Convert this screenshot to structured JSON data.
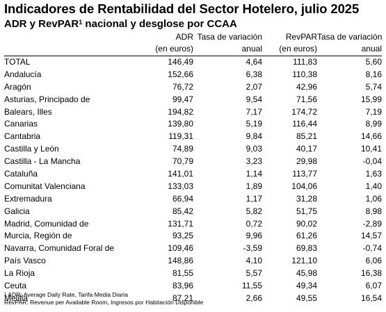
{
  "title": "Indicadores de Rentabilidad del Sector Hotelero, julio 2025",
  "subtitle": {
    "text": "ADR y RevPAR",
    "sup": "1",
    "rest": " nacional y desglose por CCAA"
  },
  "table": {
    "header_line1": [
      "",
      "ADR",
      "Tasa de variación",
      "RevPAR",
      "Tasa de variación"
    ],
    "header_line2": [
      "",
      "(en euros)",
      "anual",
      "(en euros)",
      "anual"
    ],
    "rows": [
      [
        "TOTAL",
        "146,49",
        "4,64",
        "111,83",
        "5,60"
      ],
      [
        "Andalucía",
        "152,66",
        "6,38",
        "110,38",
        "8,16"
      ],
      [
        "Aragón",
        "76,72",
        "2,07",
        "42,96",
        "5,74"
      ],
      [
        "Asturias, Principado de",
        "99,47",
        "9,54",
        "71,56",
        "15,99"
      ],
      [
        "Balears, Illes",
        "194,82",
        "7,17",
        "174,72",
        "7,19"
      ],
      [
        "Canarias",
        "139,80",
        "5,19",
        "116,44",
        "8,99"
      ],
      [
        "Cantabria",
        "119,31",
        "9,84",
        "85,21",
        "14,66"
      ],
      [
        "Castilla y León",
        "74,89",
        "9,03",
        "40,17",
        "10,41"
      ],
      [
        "Castilla - La Mancha",
        "70,79",
        "3,23",
        "29,98",
        "-0,04"
      ],
      [
        "Cataluña",
        "141,01",
        "1,14",
        "113,77",
        "1,63"
      ],
      [
        "Comunitat Valenciana",
        "133,03",
        "1,89",
        "104,06",
        "1,40"
      ],
      [
        "Extremadura",
        "66,94",
        "1,17",
        "31,28",
        "1,06"
      ],
      [
        "Galicia",
        "85,42",
        "5,82",
        "51,75",
        "8,98"
      ],
      [
        "Madrid, Comunidad de",
        "131,71",
        "0,72",
        "90,02",
        "-2,89"
      ],
      [
        "Murcia, Región de",
        "93,25",
        "9,96",
        "61,26",
        "14,57"
      ],
      [
        "Navarra, Comunidad Foral de",
        "109,46",
        "-3,59",
        "69,83",
        "-0,74"
      ],
      [
        "País Vasco",
        "148,86",
        "4,10",
        "121,10",
        "6,06"
      ],
      [
        "La Rioja",
        "81,55",
        "5,57",
        "45,98",
        "16,38"
      ],
      [
        "Ceuta",
        "83,96",
        "11,55",
        "49,34",
        "6,07"
      ],
      [
        "Melilla",
        "87,21",
        "2,66",
        "49,55",
        "16,54"
      ]
    ]
  },
  "notes": {
    "sup": "1",
    "line1": " ADR: Average Daily Rate, Tarifa Media Diaria",
    "line2": " RevPAR: Revenue per Available Room, Ingresos por Habitación Disponible"
  }
}
